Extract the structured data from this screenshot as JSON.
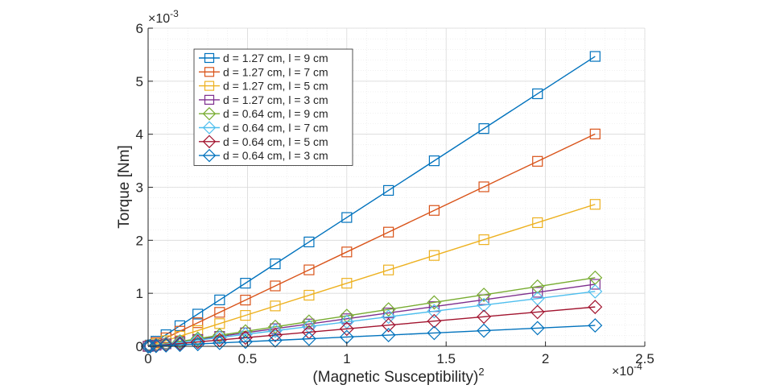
{
  "chart_data": {
    "type": "line",
    "title": "",
    "xlabel": "(Magnetic Susceptibility)",
    "xlabel_superscript": "2",
    "ylabel": "Torque [Nm]",
    "x_exponent_base": "×10",
    "x_exponent_power": "-4",
    "y_exponent_base": "×10",
    "y_exponent_power": "-3",
    "xlim": [
      0,
      2.5
    ],
    "ylim": [
      0,
      6
    ],
    "x_ticks": [
      0,
      0.5,
      1,
      1.5,
      2,
      2.5
    ],
    "x_tick_labels": [
      "0",
      "0.5",
      "1",
      "1.5",
      "2",
      "2.5"
    ],
    "y_ticks": [
      0,
      1,
      2,
      3,
      4,
      5,
      6
    ],
    "y_tick_labels": [
      "0",
      "1",
      "2",
      "3",
      "4",
      "5",
      "6"
    ],
    "grid": true,
    "minor_grid": true,
    "legend_position": "top-left",
    "x": [
      0,
      0.01,
      0.04,
      0.09,
      0.16,
      0.25,
      0.36,
      0.49,
      0.64,
      0.81,
      1.0,
      1.21,
      1.44,
      1.69,
      1.96,
      2.25
    ],
    "series": [
      {
        "name": "d = 1.27 cm, l = 9 cm",
        "color": "#0072BD",
        "marker": "square",
        "slope": 2.43
      },
      {
        "name": "d = 1.27 cm, l = 7 cm",
        "color": "#D95319",
        "marker": "square",
        "slope": 1.78
      },
      {
        "name": "d = 1.27 cm, l = 5 cm",
        "color": "#EDB120",
        "marker": "square",
        "slope": 1.19
      },
      {
        "name": "d = 1.27 cm, l = 3 cm",
        "color": "#7E2F8E",
        "marker": "square",
        "slope": 0.52
      },
      {
        "name": "d = 0.64 cm, l = 9 cm",
        "color": "#77AC30",
        "marker": "diamond",
        "slope": 0.575
      },
      {
        "name": "d = 0.64 cm, l = 7 cm",
        "color": "#4DBEEE",
        "marker": "diamond",
        "slope": 0.46
      },
      {
        "name": "d = 0.64 cm, l = 5 cm",
        "color": "#A2142F",
        "marker": "diamond",
        "slope": 0.33
      },
      {
        "name": "d = 0.64 cm, l = 3 cm",
        "color": "#0072BD",
        "marker": "diamond",
        "slope": 0.175
      }
    ]
  }
}
